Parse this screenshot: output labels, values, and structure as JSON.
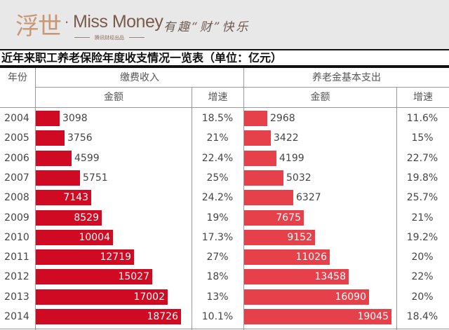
{
  "banner": {
    "logo_cn": "浮世",
    "logo_dot": "·",
    "logo_en": "Miss Money",
    "logo_sub": "腾讯财经出品",
    "slogan": "有趣“财”快乐",
    "background": "#e9e8e8"
  },
  "table": {
    "title": "近年来职工养老保险年度收支情况一览表（单位：亿元）",
    "headers": {
      "year": "年份",
      "income_group": "缴费收入",
      "expense_group": "养老金基本支出",
      "amount": "金额",
      "growth": "增速"
    },
    "colors": {
      "income_bar": "#cf0a22",
      "expense_bar": "#e6414b"
    }
  },
  "chart_data": {
    "type": "bar",
    "title": "近年来职工养老保险年度收支情况一览表（单位：亿元）",
    "orientation": "horizontal",
    "categories": [
      "2004",
      "2005",
      "2006",
      "2007",
      "2008",
      "2009",
      "2010",
      "2011",
      "2012",
      "2013",
      "2014"
    ],
    "series": [
      {
        "name": "缴费收入 金额",
        "values": [
          3098,
          3756,
          4599,
          5751,
          7143,
          8529,
          10004,
          12719,
          15027,
          17002,
          18726
        ],
        "growth": [
          "18.5%",
          "21%",
          "22.4%",
          "25%",
          "24.2%",
          "19%",
          "17.3%",
          "27%",
          "18%",
          "13%",
          "10.1%"
        ],
        "color": "#cf0a22"
      },
      {
        "name": "养老金基本支出 金额",
        "values": [
          2968,
          3422,
          4199,
          5032,
          6327,
          7675,
          9152,
          11026,
          13458,
          16090,
          19045
        ],
        "growth": [
          "11.6%",
          "15%",
          "22.7%",
          "19.8%",
          "25.7%",
          "21%",
          "19.2%",
          "20%",
          "22%",
          "20%",
          "18.4%"
        ],
        "color": "#e6414b"
      }
    ],
    "unit": "亿元",
    "xlabel": "",
    "ylabel": "年份",
    "grid": false,
    "legend": "none"
  }
}
